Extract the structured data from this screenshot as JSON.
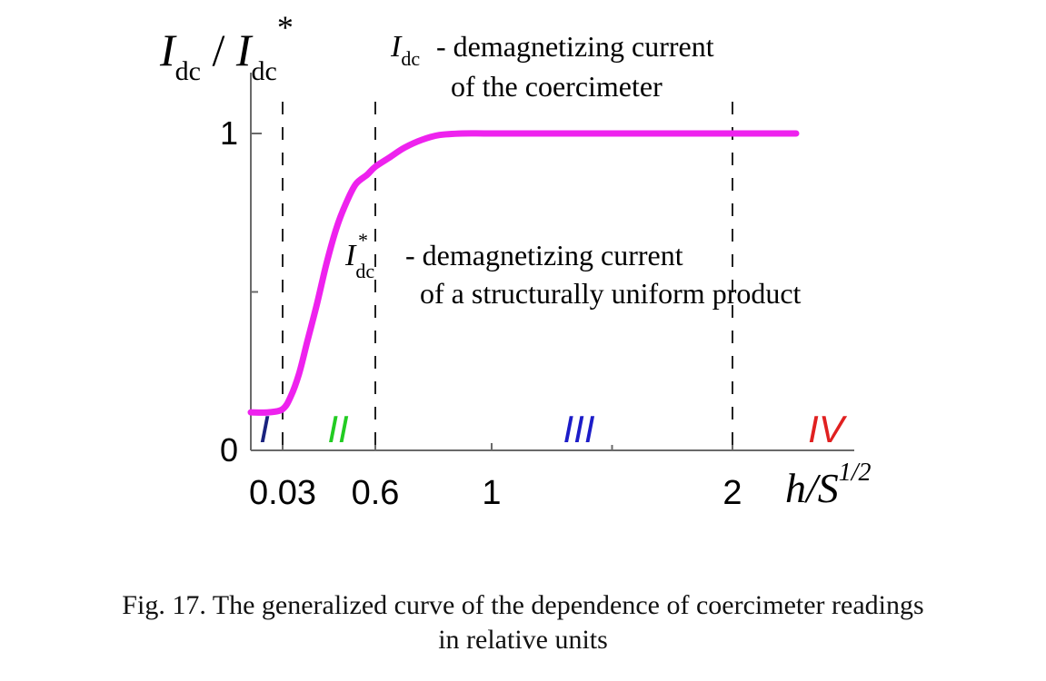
{
  "chart_data": {
    "type": "line",
    "ylabel": {
      "main": "I",
      "sub": "dc",
      "sep": " / ",
      "main2": "I",
      "sub2": "dc",
      "sup2": "*"
    },
    "xlabel": {
      "main": "h/S",
      "sup": "1/2"
    },
    "x_ticks": [
      {
        "value": 0.03,
        "label": "0.03"
      },
      {
        "value": 0.6,
        "label": "0.6"
      },
      {
        "value": 1,
        "label": "1"
      },
      {
        "value": 2,
        "label": "2"
      }
    ],
    "y_ticks": [
      {
        "value": 0,
        "label": "0"
      },
      {
        "value": 1,
        "label": "1"
      }
    ],
    "series": [
      {
        "color": "#ee22ee",
        "x": [
          -0.15,
          -0.05,
          0.03,
          0.08,
          0.13,
          0.18,
          0.24,
          0.3,
          0.36,
          0.42,
          0.48,
          0.55,
          0.6,
          0.65,
          0.7,
          0.76,
          0.82,
          0.9,
          1.0,
          1.3,
          1.7,
          2.0,
          2.27
        ],
        "y": [
          0.12,
          0.12,
          0.13,
          0.17,
          0.24,
          0.34,
          0.46,
          0.59,
          0.7,
          0.78,
          0.84,
          0.87,
          0.895,
          0.925,
          0.955,
          0.98,
          0.995,
          1.0,
          1.0,
          1.0,
          1.0,
          1.0,
          1.0
        ]
      }
    ],
    "regions": [
      {
        "label": "I",
        "color": "#1a237e"
      },
      {
        "label": "II",
        "color": "#22cc22"
      },
      {
        "label": "III",
        "color": "#1c1cc8"
      },
      {
        "label": "IV",
        "color": "#e02020"
      }
    ],
    "annotations": [
      {
        "symbol": "I",
        "sub": "dc",
        "sup": "",
        "line1": "- demagnetizing current",
        "line2": "of the coercimeter"
      },
      {
        "symbol": "I",
        "sub": "dc",
        "sup": "*",
        "line1": "- demagnetizing current",
        "line2": "of a structurally uniform product"
      }
    ],
    "caption": [
      "Fig. 17. The generalized curve of the dependence of coercimeter readings",
      "in relative units"
    ]
  }
}
